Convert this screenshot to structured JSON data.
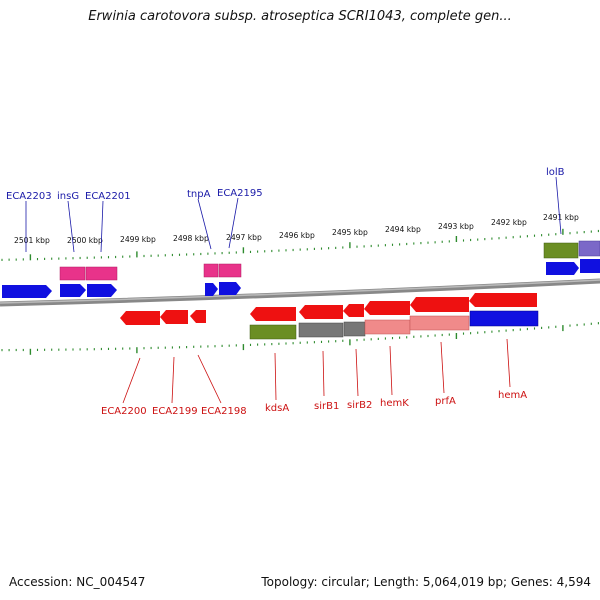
{
  "title": "Erwinia carotovora subsp. atroseptica SCRI1043, complete gen...",
  "footer": {
    "accession": "Accession: NC_004547",
    "summary": "Topology: circular; Length: 5,064,019 bp; Genes: 4,594"
  },
  "scale_labels": [
    "2501 kbp",
    "2500 kbp",
    "2499 kbp",
    "2498 kbp",
    "2497 kbp",
    "2496 kbp",
    "2495 kbp",
    "2494 kbp",
    "2493 kbp",
    "2492 kbp",
    "2491 kbp"
  ],
  "gene_labels": {
    "top": [
      "ECA2203",
      "insG",
      "ECA2201",
      "tnpA",
      "ECA2195",
      "lolB"
    ],
    "bottom": [
      "ECA2200",
      "ECA2199",
      "ECA2198",
      "kdsA",
      "sirB1",
      "sirB2",
      "hemK",
      "prfA",
      "hemA"
    ]
  },
  "colors": {
    "top_label": "#1a1aa8",
    "bottom_label": "#cc1111",
    "backbone": "#8a8a8a",
    "ticks": "#2e8b2e",
    "forward_gene": "#1010e0",
    "reverse_gene": "#ee1111",
    "pink_track": "#e8338a",
    "olive_track": "#6b8e23",
    "gray_track": "#777777",
    "salmon_track": "#f08a8a",
    "purple_track": "#7b68c8"
  }
}
